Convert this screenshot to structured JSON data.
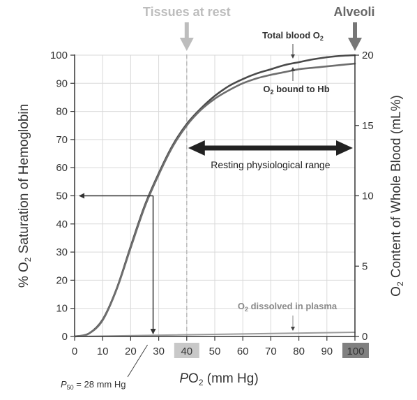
{
  "chart_data": {
    "type": "line",
    "x": [
      0,
      10,
      20,
      30,
      40,
      50,
      60,
      70,
      80,
      90,
      100
    ],
    "x_ticks": [
      "0",
      "10",
      "20",
      "30",
      "40",
      "50",
      "60",
      "70",
      "80",
      "90",
      "100"
    ],
    "y_ticks": [
      "0",
      "10",
      "20",
      "30",
      "40",
      "50",
      "60",
      "70",
      "80",
      "90",
      "100"
    ],
    "y2_ticks": [
      "0",
      "5",
      "10",
      "15",
      "20"
    ],
    "xlim": [
      0,
      100
    ],
    "ylim": [
      0,
      100
    ],
    "y2lim": [
      0,
      20
    ],
    "xlabel": {
      "pre": "P",
      "main": "O",
      "sub": "2",
      "post": " (mm Hg)"
    },
    "ylabel": {
      "pre": "% O",
      "sub": "2",
      "post": " Saturation of Hemoglobin"
    },
    "y2label": {
      "pre": "O",
      "sub": "2",
      "post": " Content of Whole Blood (mL%)"
    },
    "grid": true,
    "series": [
      {
        "name": {
          "pre": "Total blood O",
          "sub": "2",
          "post": ""
        },
        "axis": "y2",
        "x": [
          0,
          5,
          10,
          15,
          20,
          25,
          30,
          35,
          40,
          45,
          50,
          55,
          60,
          65,
          70,
          75,
          80,
          85,
          90,
          95,
          100
        ],
        "y": [
          0,
          0.2,
          1.2,
          3.4,
          6.4,
          9.3,
          11.6,
          13.6,
          15.1,
          16.2,
          17.1,
          17.8,
          18.3,
          18.7,
          19.0,
          19.3,
          19.5,
          19.7,
          19.85,
          19.95,
          20.0
        ],
        "color": "#4a4a4a"
      },
      {
        "name": {
          "pre": "O",
          "sub": "2",
          "post": " bound to Hb"
        },
        "axis": "y2",
        "x": [
          0,
          5,
          10,
          15,
          20,
          25,
          30,
          35,
          40,
          45,
          50,
          55,
          60,
          65,
          70,
          75,
          80,
          85,
          90,
          95,
          100
        ],
        "y": [
          0,
          0.2,
          1.15,
          3.35,
          6.3,
          9.2,
          11.5,
          13.5,
          15.0,
          16.1,
          16.9,
          17.5,
          18.0,
          18.35,
          18.6,
          18.8,
          19.0,
          19.1,
          19.2,
          19.3,
          19.4
        ],
        "color": "#6e6e6e"
      },
      {
        "name": {
          "pre": "O",
          "sub": "2",
          "post": " dissolved in plasma"
        },
        "axis": "y2",
        "x": [
          0,
          100
        ],
        "y": [
          0,
          0.3
        ],
        "color": "#9a9a9a"
      }
    ],
    "annotations": {
      "tissues": "Tissues at rest",
      "tissues_x": 40,
      "alveoli": "Alveoli",
      "alveoli_x": 100,
      "range_label": "Resting physiological range",
      "range_from": 40,
      "range_to": 100,
      "range_y": 67,
      "p50_pre": "P",
      "p50_sub": "50",
      "p50_post": " = 28 mm Hg",
      "p50_x": 28,
      "p50_y": 50
    }
  }
}
